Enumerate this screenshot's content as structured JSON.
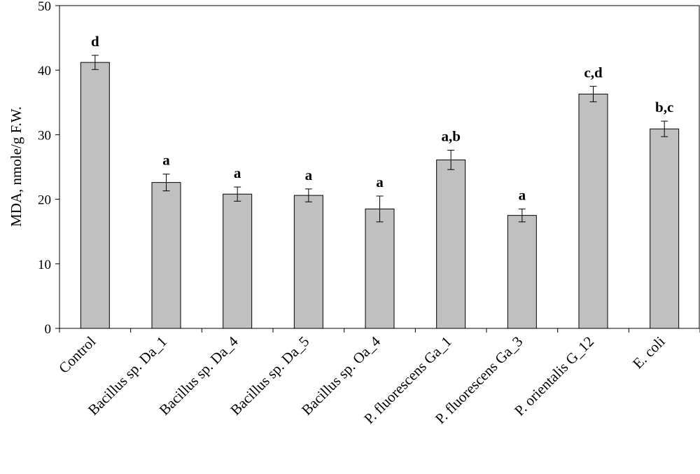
{
  "chart_data": {
    "type": "bar",
    "title": "",
    "xlabel": "",
    "ylabel": "MDA, nmole/g F.W.",
    "ylim": [
      0,
      50
    ],
    "yticks": [
      0,
      10,
      20,
      30,
      40,
      50
    ],
    "grid": false,
    "legend": "none",
    "categories": [
      "Control",
      "Bacillus sp. Da_1",
      "Bacillus sp. Da_4",
      "Bacillus sp. Da_5",
      "Bacillus sp. Oa_4",
      "P. fluorescens Ga_1",
      "P. fluorescens Ga_3",
      "P. orientalis G_12",
      "E. coli"
    ],
    "series": [
      {
        "values": [
          41.2,
          22.6,
          20.8,
          20.6,
          18.5,
          26.1,
          17.5,
          36.3,
          30.9
        ],
        "errors": [
          1.1,
          1.3,
          1.1,
          1.0,
          2.0,
          1.5,
          1.0,
          1.2,
          1.2
        ],
        "significance": [
          "d",
          "a",
          "a",
          "a",
          "a",
          "a,b",
          "a",
          "c,d",
          "b,c"
        ]
      }
    ],
    "colors": {
      "bar_fill": "#c0c0c0",
      "bar_stroke": "#000000",
      "axis": "#000000"
    }
  }
}
